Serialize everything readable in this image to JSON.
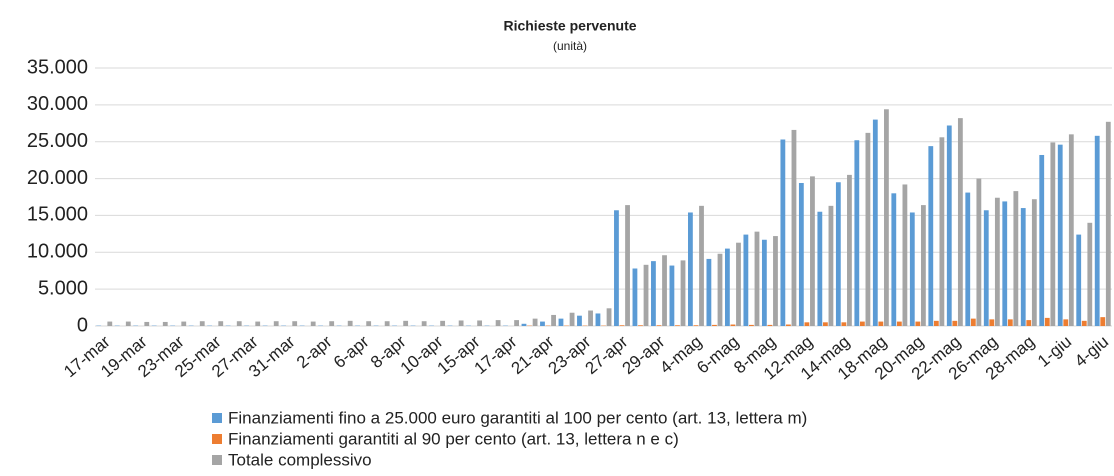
{
  "chart_data": {
    "type": "bar",
    "title": "Richieste pervenute",
    "subtitle": "(unità)",
    "categories": [
      "17-mar",
      null,
      "19-mar",
      null,
      "23-mar",
      null,
      "25-mar",
      null,
      "27-mar",
      null,
      "31-mar",
      null,
      "2-apr",
      null,
      "6-apr",
      null,
      "8-apr",
      null,
      "10-apr",
      null,
      "15-apr",
      null,
      "17-apr",
      null,
      "21-apr",
      null,
      "23-apr",
      null,
      "27-apr",
      null,
      "29-apr",
      null,
      "4-mag",
      null,
      "6-mag",
      null,
      "8-mag",
      null,
      "12-mag",
      null,
      "14-mag",
      null,
      "18-mag",
      null,
      "20-mag",
      null,
      "22-mag",
      null,
      "26-mag",
      null,
      "28-mag",
      null,
      "1-giu",
      null,
      "4-giu"
    ],
    "series": [
      {
        "name": "Finanziamenti fino a 25.000 euro garantiti al 100 per cento (art. 13, lettera m)",
        "color": "#5b9bd5",
        "values": [
          50,
          50,
          50,
          50,
          50,
          50,
          50,
          50,
          50,
          50,
          50,
          50,
          50,
          50,
          50,
          50,
          50,
          50,
          50,
          50,
          50,
          50,
          50,
          300,
          600,
          1000,
          1400,
          1700,
          15700,
          7800,
          8800,
          8200,
          15400,
          9100,
          10500,
          12400,
          11700,
          25300,
          19400,
          15500,
          19500,
          25200,
          28000,
          18000,
          15400,
          24400,
          27200,
          18100,
          15700,
          16900,
          16000,
          23200,
          24600,
          12400,
          25800
        ]
      },
      {
        "name": "Finanziamenti garantiti al 90 per cento (art. 13, lettera n e c)",
        "color": "#ed7d31",
        "values": [
          0,
          0,
          0,
          0,
          0,
          0,
          0,
          0,
          0,
          0,
          0,
          0,
          0,
          0,
          0,
          0,
          0,
          0,
          0,
          0,
          0,
          0,
          0,
          50,
          50,
          50,
          50,
          50,
          100,
          100,
          100,
          100,
          100,
          150,
          200,
          150,
          150,
          200,
          500,
          500,
          500,
          600,
          600,
          600,
          600,
          700,
          700,
          1000,
          900,
          900,
          800,
          1100,
          900,
          700,
          1200
        ]
      },
      {
        "name": "Totale complessivo",
        "color": "#a5a5a5",
        "values": [
          600,
          600,
          550,
          550,
          600,
          650,
          650,
          650,
          600,
          650,
          650,
          600,
          650,
          700,
          650,
          650,
          700,
          650,
          700,
          750,
          750,
          800,
          800,
          1000,
          1500,
          1800,
          2100,
          2400,
          16400,
          8300,
          9600,
          8900,
          16300,
          9800,
          11300,
          12800,
          12200,
          26600,
          20300,
          16300,
          20500,
          26200,
          29400,
          19200,
          16400,
          25600,
          28200,
          20000,
          17400,
          18300,
          17200,
          24900,
          26000,
          14000,
          27700
        ]
      }
    ],
    "ylim": [
      0,
      35000
    ],
    "yticks": [
      0,
      {
        "value": 5000,
        "label": "5.000"
      },
      {
        "value": 10000,
        "label": "10.000"
      },
      {
        "value": 15000,
        "label": "15.000"
      },
      {
        "value": 20000,
        "label": "20.000"
      },
      {
        "value": 25000,
        "label": "25.000"
      },
      {
        "value": 30000,
        "label": "30.000"
      },
      {
        "value": 35000,
        "label": "35.000"
      }
    ],
    "grid": true
  }
}
